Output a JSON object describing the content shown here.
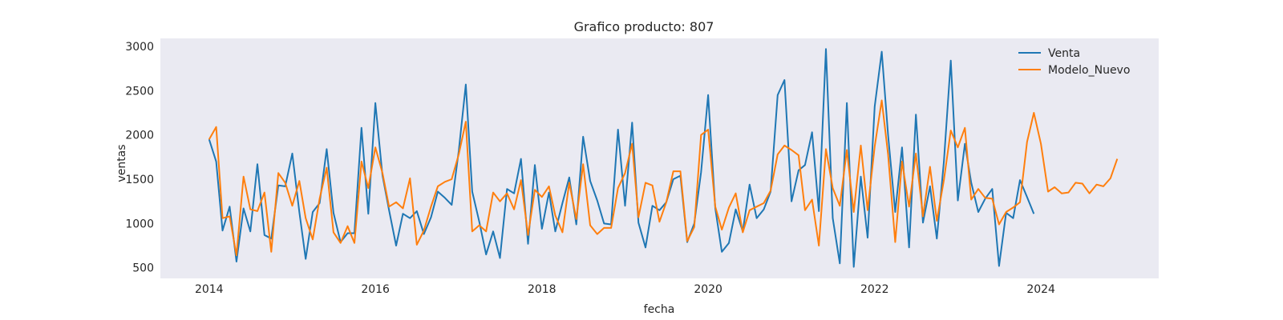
{
  "chart_data": {
    "type": "line",
    "title": "Grafico producto: 807",
    "xlabel": "fecha",
    "ylabel": "ventas",
    "xlim": [
      "2013-06-01",
      "2025-06-01"
    ],
    "ylim": [
      380,
      3090
    ],
    "x_ticks": [
      "2014",
      "2016",
      "2018",
      "2020",
      "2022",
      "2024"
    ],
    "y_ticks": [
      500,
      1000,
      1500,
      2000,
      2500,
      3000
    ],
    "grid": false,
    "legend_position": "top-right",
    "colors": {
      "background": "#eaeaf2",
      "Venta": "#1f77b4",
      "Modelo_Nuevo": "#ff7f0e"
    },
    "series": [
      {
        "name": "Venta",
        "start": "2014-01",
        "values": [
          1950,
          1700,
          920,
          1190,
          570,
          1170,
          910,
          1670,
          870,
          830,
          1430,
          1420,
          1790,
          1130,
          600,
          1130,
          1230,
          1840,
          1120,
          790,
          890,
          890,
          2080,
          1110,
          2360,
          1540,
          1150,
          750,
          1110,
          1060,
          1140,
          880,
          1070,
          1360,
          1290,
          1210,
          1820,
          2570,
          1360,
          1020,
          650,
          910,
          610,
          1390,
          1340,
          1730,
          770,
          1660,
          940,
          1350,
          910,
          1230,
          1520,
          990,
          1980,
          1480,
          1260,
          1000,
          990,
          2060,
          1200,
          2140,
          1010,
          730,
          1200,
          1150,
          1240,
          1500,
          1540,
          790,
          1000,
          1580,
          2450,
          1170,
          680,
          780,
          1160,
          910,
          1440,
          1060,
          1160,
          1360,
          2450,
          2620,
          1250,
          1600,
          1660,
          2030,
          1140,
          2970,
          1060,
          550,
          2360,
          510,
          1530,
          840,
          2320,
          2940,
          2000,
          1130,
          1860,
          730,
          2230,
          1010,
          1420,
          830,
          1700,
          2840,
          1260,
          1900,
          1460,
          1130,
          1280,
          1390,
          520,
          1120,
          1060,
          1490,
          1300,
          1110
        ]
      },
      {
        "name": "Modelo_Nuevo",
        "start": "2014-01",
        "values": [
          1950,
          2090,
          1060,
          1080,
          640,
          1530,
          1160,
          1140,
          1350,
          680,
          1570,
          1460,
          1200,
          1480,
          1060,
          820,
          1280,
          1630,
          900,
          780,
          970,
          780,
          1700,
          1400,
          1860,
          1570,
          1190,
          1240,
          1170,
          1510,
          760,
          920,
          1190,
          1420,
          1470,
          1500,
          1780,
          2150,
          910,
          980,
          910,
          1350,
          1250,
          1340,
          1160,
          1490,
          870,
          1380,
          1300,
          1420,
          1090,
          900,
          1460,
          1050,
          1670,
          980,
          880,
          950,
          950,
          1400,
          1570,
          1900,
          1070,
          1460,
          1430,
          1020,
          1240,
          1590,
          1590,
          800,
          960,
          2000,
          2060,
          1190,
          930,
          1180,
          1340,
          900,
          1150,
          1190,
          1230,
          1370,
          1780,
          1880,
          1830,
          1770,
          1150,
          1270,
          750,
          1840,
          1400,
          1200,
          1830,
          1130,
          1880,
          1150,
          1870,
          2390,
          1780,
          790,
          1700,
          1190,
          1790,
          1080,
          1640,
          1030,
          1490,
          2050,
          1860,
          2080,
          1270,
          1390,
          1290,
          1280,
          990,
          1130,
          1180,
          1240,
          1920,
          2250,
          1900,
          1360,
          1410,
          1340,
          1350,
          1460,
          1450,
          1340,
          1440,
          1420,
          1510,
          1730
        ]
      }
    ]
  }
}
